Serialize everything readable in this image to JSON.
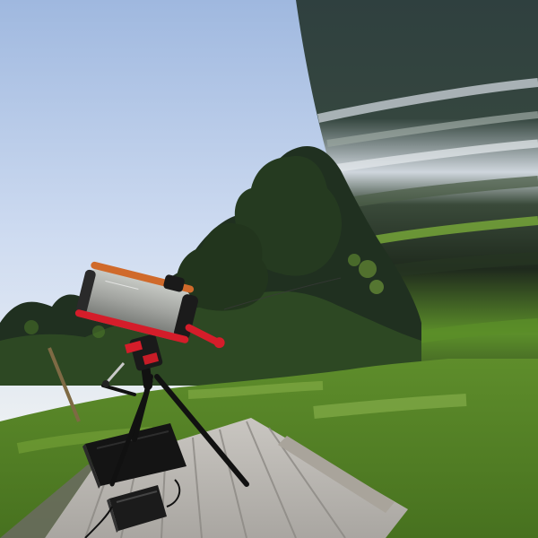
{
  "scene": {
    "type": "photograph",
    "palette": {
      "sky_top": "#b7c9e6",
      "sky_mid": "#d7e2f2",
      "sky_horizon": "#eef1f3",
      "foliage_dark": "#1f2d1d",
      "foliage_mid": "#2f4b24",
      "grass": "#5e8d2b",
      "grass_light": "#8bb24a",
      "deck": "#b9b6b1",
      "deck_shadow": "#8e8b86",
      "tube": "#a8aaa6",
      "red": "#d41d2a",
      "black": "#111111",
      "glitch_dark": "#314140"
    }
  }
}
